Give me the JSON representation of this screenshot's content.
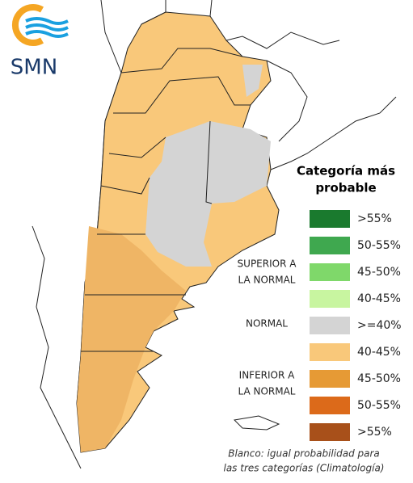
{
  "logo": {
    "text": "SMN"
  },
  "legend": {
    "title": [
      "Categoría más",
      "probable"
    ],
    "items": [
      {
        "label": ">55%",
        "color": "#1a7a2e"
      },
      {
        "label": "50-55%",
        "color": "#3fa84f"
      },
      {
        "label": "45-50%",
        "color": "#7fd86a"
      },
      {
        "label": "40-45%",
        "color": "#c8f5a0"
      },
      {
        "label": ">=40%",
        "color": "#d4d4d4"
      },
      {
        "label": "40-45%",
        "color": "#f9c87a"
      },
      {
        "label": "45-50%",
        "color": "#e69a35"
      },
      {
        "label": "50-55%",
        "color": "#dc6a1a"
      },
      {
        "label": ">55%",
        "color": "#a8501a"
      }
    ],
    "groups": {
      "superior": [
        "SUPERIOR A",
        "LA NORMAL"
      ],
      "normal": "NORMAL",
      "inferior": [
        "INFERIOR A",
        "LA NORMAL"
      ]
    }
  },
  "footnote": [
    "Blanco: igual probabilidad para",
    "las tres categorías (Climatología)"
  ]
}
